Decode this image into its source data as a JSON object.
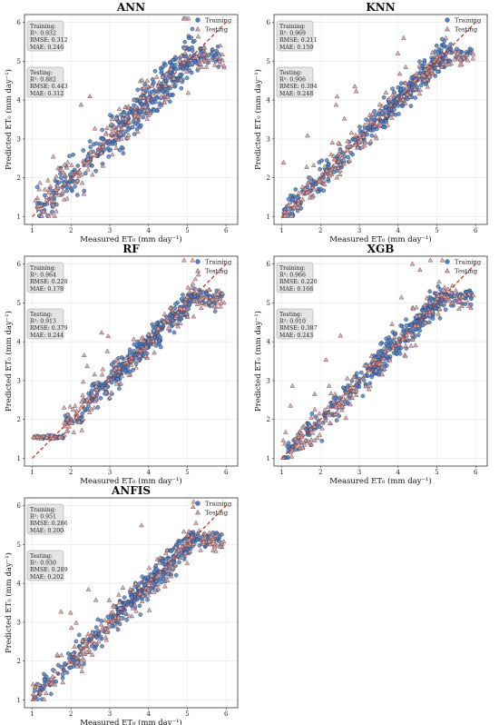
{
  "chart_data": [
    {
      "type": "scatter",
      "title": "ANN",
      "xlabel": "Measured ET₀ (mm day⁻¹)",
      "ylabel": "Predicted ET₀ (mm day⁻¹)",
      "xlim": [
        0.8,
        6.3
      ],
      "ylim": [
        0.8,
        6.2
      ],
      "xticks": [
        1,
        2,
        3,
        4,
        5,
        6
      ],
      "yticks": [
        1,
        2,
        3,
        4,
        5,
        6
      ],
      "grid": true,
      "legend_position": "top-right",
      "series": [
        {
          "name": "Training",
          "marker": "circle",
          "color": "#4f7fc4"
        },
        {
          "name": "Testing",
          "marker": "triangle",
          "color": "#e0a0a4"
        }
      ],
      "stats": {
        "training_header": "Training:",
        "training_r2": "R²: 0.932",
        "training_rmse": "RMSE: 0.312",
        "training_mae": "MAE: 0.246",
        "testing_header": "Testing:",
        "testing_r2": "R²: 0.882",
        "testing_rmse": "RMSE: 0.443",
        "testing_mae": "MAE: 0.312"
      },
      "plateau": false
    },
    {
      "type": "scatter",
      "title": "KNN",
      "xlabel": "Measured ET₀ (mm day⁻¹)",
      "ylabel": "Predicted ET₀ (mm day⁻¹)",
      "xlim": [
        0.8,
        6.3
      ],
      "ylim": [
        0.8,
        6.2
      ],
      "xticks": [
        1,
        2,
        3,
        4,
        5,
        6
      ],
      "yticks": [
        1,
        2,
        3,
        4,
        5,
        6
      ],
      "grid": true,
      "legend_position": "top-right",
      "series": [
        {
          "name": "Training",
          "marker": "circle",
          "color": "#4f7fc4"
        },
        {
          "name": "Testing",
          "marker": "triangle",
          "color": "#e0a0a4"
        }
      ],
      "stats": {
        "training_header": "Training:",
        "training_r2": "R²: 0.969",
        "training_rmse": "RMSE: 0.211",
        "training_mae": "MAE: 0.159",
        "testing_header": "Testing:",
        "testing_r2": "R²: 0.906",
        "testing_rmse": "RMSE: 0.394",
        "testing_mae": "MAE: 0.248"
      },
      "plateau": false
    },
    {
      "type": "scatter",
      "title": "RF",
      "xlabel": "Measured ET₀ (mm day⁻¹)",
      "ylabel": "Predicted ET₀ (mm day⁻¹)",
      "xlim": [
        0.8,
        6.3
      ],
      "ylim": [
        0.8,
        6.2
      ],
      "xticks": [
        1,
        2,
        3,
        4,
        5,
        6
      ],
      "yticks": [
        1,
        2,
        3,
        4,
        5,
        6
      ],
      "grid": true,
      "legend_position": "top-right",
      "series": [
        {
          "name": "Training",
          "marker": "circle",
          "color": "#4f7fc4"
        },
        {
          "name": "Testing",
          "marker": "triangle",
          "color": "#e0a0a4"
        }
      ],
      "stats": {
        "training_header": "Training:",
        "training_r2": "R²: 0.964",
        "training_rmse": "RMSE: 0.228",
        "training_mae": "MAE: 0.178",
        "testing_header": "Testing:",
        "testing_r2": "R²: 0.913",
        "testing_rmse": "RMSE: 0.379",
        "testing_mae": "MAE: 0.244"
      },
      "plateau": true
    },
    {
      "type": "scatter",
      "title": "XGB",
      "xlabel": "Measured ET₀ (mm day⁻¹)",
      "ylabel": "Predicted ET₀ (mm day⁻¹)",
      "xlim": [
        0.8,
        6.3
      ],
      "ylim": [
        0.8,
        6.2
      ],
      "xticks": [
        1,
        2,
        3,
        4,
        5,
        6
      ],
      "yticks": [
        1,
        2,
        3,
        4,
        5,
        6
      ],
      "grid": true,
      "legend_position": "top-right",
      "series": [
        {
          "name": "Training",
          "marker": "circle",
          "color": "#4f7fc4"
        },
        {
          "name": "Testing",
          "marker": "triangle",
          "color": "#e0a0a4"
        }
      ],
      "stats": {
        "training_header": "Training:",
        "training_r2": "R²: 0.966",
        "training_rmse": "RMSE: 0.220",
        "training_mae": "MAE: 0.168",
        "testing_header": "Testing:",
        "testing_r2": "R²: 0.910",
        "testing_rmse": "RMSE: 0.387",
        "testing_mae": "MAE: 0.243"
      },
      "plateau": false
    },
    {
      "type": "scatter",
      "title": "ANFIS",
      "xlabel": "Measured ET₀ (mm day⁻¹)",
      "ylabel": "Predicted ET₀ (mm day⁻¹)",
      "xlim": [
        0.8,
        6.3
      ],
      "ylim": [
        0.8,
        6.2
      ],
      "xticks": [
        1,
        2,
        3,
        4,
        5,
        6
      ],
      "yticks": [
        1,
        2,
        3,
        4,
        5,
        6
      ],
      "grid": true,
      "legend_position": "top-right",
      "series": [
        {
          "name": "Training",
          "marker": "circle",
          "color": "#4f7fc4"
        },
        {
          "name": "Testing",
          "marker": "triangle",
          "color": "#e0a0a4"
        }
      ],
      "stats": {
        "training_header": "Training:",
        "training_r2": "R²: 0.951",
        "training_rmse": "RMSE: 0.266",
        "training_mae": "MAE: 0.200",
        "testing_header": "Testing:",
        "testing_r2": "R²: 0.930",
        "testing_rmse": "RMSE: 0.289",
        "testing_mae": "MAE: 0.202"
      },
      "plateau": false
    }
  ],
  "colors": {
    "training": "#4f7fc4",
    "training_edge": "#1f3050",
    "testing": "#e0a0a4",
    "testing_edge": "#5a4a4a",
    "diagonal": "#c0392b",
    "grid": "#e6e6e6",
    "statbox": "#e4e4e4"
  }
}
